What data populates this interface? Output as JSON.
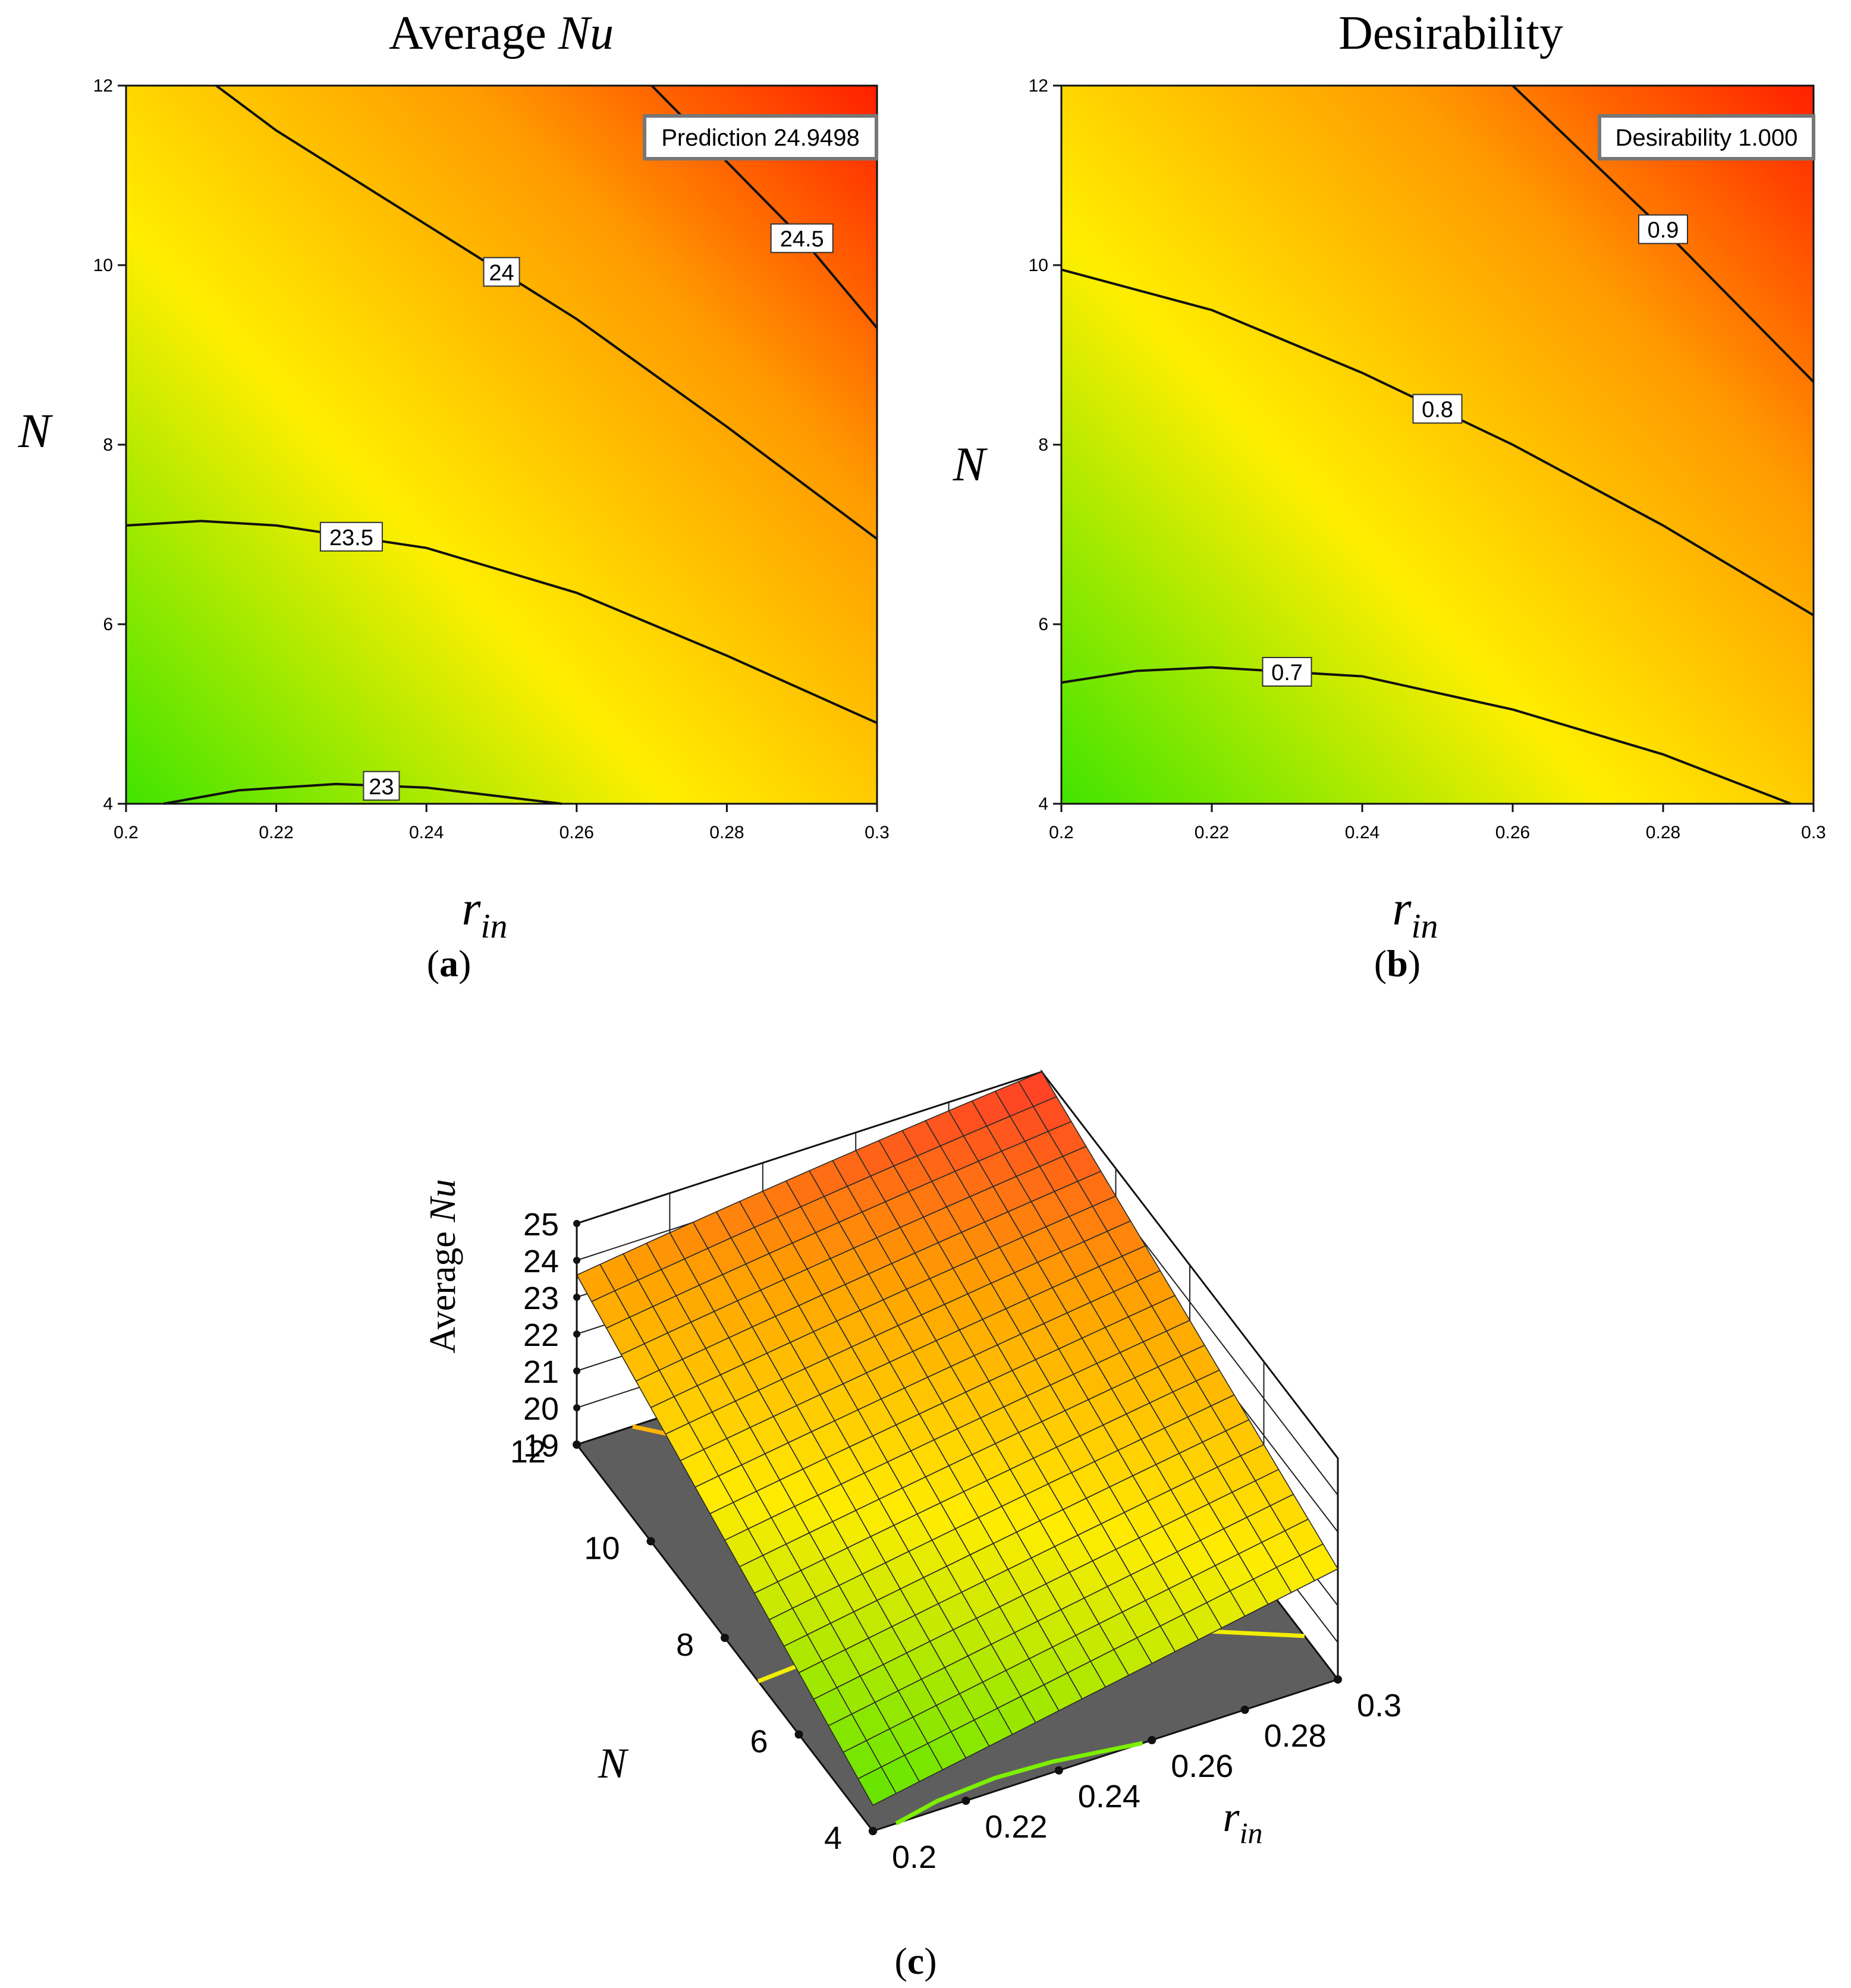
{
  "colors": {
    "low": "#55e600",
    "mid": "#ffee00",
    "high": "#ff2200",
    "floor": "#5e5e5e",
    "contour_line": "#111111"
  },
  "panel_labels": {
    "a": "a",
    "b": "b",
    "c": "c"
  },
  "chart_data": [
    {
      "type": "heatmap",
      "subtype": "contour",
      "title_main": "Average",
      "title_var": "Nu",
      "xlabel_main": "r",
      "xlabel_sub": "in",
      "ylabel": "N",
      "xlim": [
        0.2,
        0.3
      ],
      "ylim": [
        4,
        12
      ],
      "xticks": [
        "0.2",
        "0.22",
        "0.24",
        "0.26",
        "0.28",
        "0.3"
      ],
      "yticks": [
        "4",
        "6",
        "8",
        "10",
        "12"
      ],
      "contour_levels": [
        "23",
        "23.5",
        "24",
        "24.5"
      ],
      "contours": [
        {
          "level": "23",
          "points": [
            [
              0.205,
              4.0
            ],
            [
              0.215,
              4.15
            ],
            [
              0.228,
              4.22
            ],
            [
              0.24,
              4.18
            ],
            [
              0.25,
              4.08
            ],
            [
              0.258,
              4.0
            ]
          ]
        },
        {
          "level": "23.5",
          "points": [
            [
              0.2,
              7.1
            ],
            [
              0.21,
              7.15
            ],
            [
              0.22,
              7.1
            ],
            [
              0.24,
              6.85
            ],
            [
              0.26,
              6.35
            ],
            [
              0.28,
              5.65
            ],
            [
              0.3,
              4.9
            ]
          ]
        },
        {
          "level": "24",
          "points": [
            [
              0.212,
              12.0
            ],
            [
              0.22,
              11.5
            ],
            [
              0.24,
              10.45
            ],
            [
              0.26,
              9.4
            ],
            [
              0.28,
              8.2
            ],
            [
              0.3,
              6.95
            ]
          ]
        },
        {
          "level": "24.5",
          "points": [
            [
              0.27,
              12.0
            ],
            [
              0.28,
              11.15
            ],
            [
              0.29,
              10.3
            ],
            [
              0.3,
              9.3
            ]
          ]
        }
      ],
      "annotation": {
        "label": "Prediction",
        "value": "24.9498"
      }
    },
    {
      "type": "heatmap",
      "subtype": "contour",
      "title": "Desirability",
      "xlabel_main": "r",
      "xlabel_sub": "in",
      "ylabel": "N",
      "xlim": [
        0.2,
        0.3
      ],
      "ylim": [
        4,
        12
      ],
      "xticks": [
        "0.2",
        "0.22",
        "0.24",
        "0.26",
        "0.28",
        "0.3"
      ],
      "yticks": [
        "4",
        "6",
        "8",
        "10",
        "12"
      ],
      "contour_levels": [
        "0.7",
        "0.8",
        "0.9"
      ],
      "contours": [
        {
          "level": "0.7",
          "points": [
            [
              0.2,
              5.35
            ],
            [
              0.21,
              5.48
            ],
            [
              0.22,
              5.52
            ],
            [
              0.24,
              5.42
            ],
            [
              0.26,
              5.05
            ],
            [
              0.28,
              4.55
            ],
            [
              0.297,
              4.0
            ]
          ]
        },
        {
          "level": "0.8",
          "points": [
            [
              0.2,
              9.95
            ],
            [
              0.22,
              9.5
            ],
            [
              0.24,
              8.8
            ],
            [
              0.26,
              8.0
            ],
            [
              0.28,
              7.1
            ],
            [
              0.3,
              6.1
            ]
          ]
        },
        {
          "level": "0.9",
          "points": [
            [
              0.26,
              12.0
            ],
            [
              0.27,
              11.2
            ],
            [
              0.28,
              10.4
            ],
            [
              0.29,
              9.55
            ],
            [
              0.3,
              8.7
            ]
          ]
        }
      ],
      "annotation": {
        "label": "Desirability",
        "value": "1.000"
      }
    },
    {
      "type": "surface",
      "zlabel_main": "Average",
      "zlabel_var": "Nu",
      "xlabel_main": "r",
      "xlabel_sub": "in",
      "ylabel": "N",
      "xlim": [
        0.2,
        0.3
      ],
      "ylim": [
        4,
        12
      ],
      "zlim": [
        19,
        25
      ],
      "xticks": [
        "0.2",
        "0.22",
        "0.24",
        "0.26",
        "0.28",
        "0.3"
      ],
      "yticks": [
        "4",
        "6",
        "8",
        "10",
        "12"
      ],
      "zticks": [
        "19",
        "20",
        "21",
        "22",
        "23",
        "24",
        "25"
      ],
      "corner_values": {
        "r0.2_N4": 19.7,
        "r0.3_N4": 22.0,
        "r0.2_N12": 23.6,
        "r0.3_N12": 25.0
      },
      "grid_divisions": 20
    }
  ]
}
